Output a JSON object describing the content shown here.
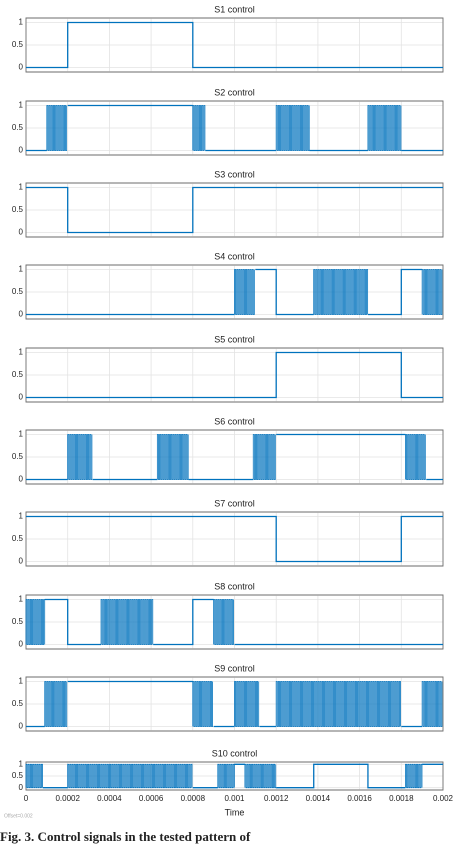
{
  "chart_data": [
    {
      "type": "step",
      "title": "S1 control",
      "color": "#0072bd",
      "ylim": [
        -0.1,
        1.1
      ],
      "yticks": [
        0,
        0.5,
        1
      ],
      "x": [
        0,
        0.0002,
        0.0008,
        0.002
      ],
      "values": [
        0,
        1,
        0,
        0
      ],
      "pwm": []
    },
    {
      "type": "step",
      "title": "S2 control",
      "color": "#0072bd",
      "ylim": [
        -0.1,
        1.1
      ],
      "yticks": [
        0,
        0.5,
        1
      ],
      "x": [
        0,
        0.0001,
        0.0002,
        0.0008,
        0.00086,
        0.0012,
        0.00136,
        0.00164,
        0.0018,
        0.002
      ],
      "values": [
        0,
        null,
        1,
        null,
        0,
        null,
        0,
        null,
        0,
        0
      ],
      "pwm": [
        [
          0.0001,
          0.0002
        ],
        [
          0.0008,
          0.00086
        ],
        [
          0.0012,
          0.00136
        ],
        [
          0.00164,
          0.0018
        ]
      ]
    },
    {
      "type": "step",
      "title": "S3 control",
      "color": "#0072bd",
      "ylim": [
        -0.1,
        1.1
      ],
      "yticks": [
        0,
        0.5,
        1
      ],
      "x": [
        0,
        0.0002,
        0.0008,
        0.002
      ],
      "values": [
        1,
        0,
        1,
        1
      ],
      "pwm": []
    },
    {
      "type": "step",
      "title": "S4 control",
      "color": "#0072bd",
      "ylim": [
        -0.1,
        1.1
      ],
      "yticks": [
        0,
        0.5,
        1
      ],
      "x": [
        0,
        0.001,
        0.0011,
        0.0012,
        0.00138,
        0.00164,
        0.0018,
        0.0019,
        0.002
      ],
      "values": [
        0,
        null,
        1,
        0,
        null,
        0,
        1,
        null,
        null
      ],
      "pwm": [
        [
          0.001,
          0.0011
        ],
        [
          0.00138,
          0.00164
        ],
        [
          0.0019,
          0.002
        ]
      ]
    },
    {
      "type": "step",
      "title": "S5 control",
      "color": "#0072bd",
      "ylim": [
        -0.1,
        1.1
      ],
      "yticks": [
        0,
        0.5,
        1
      ],
      "x": [
        0,
        0.0012,
        0.0018,
        0.002
      ],
      "values": [
        0,
        1,
        0,
        0
      ],
      "pwm": []
    },
    {
      "type": "step",
      "title": "S6 control",
      "color": "#0072bd",
      "ylim": [
        -0.1,
        1.1
      ],
      "yticks": [
        0,
        0.5,
        1
      ],
      "x": [
        0,
        0.0002,
        0.00032,
        0.00063,
        0.00078,
        0.00109,
        0.0012,
        0.00182,
        0.00192,
        0.002
      ],
      "values": [
        0,
        null,
        0,
        null,
        0,
        null,
        1,
        null,
        0,
        0
      ],
      "pwm": [
        [
          0.0002,
          0.00032
        ],
        [
          0.00063,
          0.00078
        ],
        [
          0.00109,
          0.0012
        ],
        [
          0.00182,
          0.00192
        ]
      ]
    },
    {
      "type": "step",
      "title": "S7 control",
      "color": "#0072bd",
      "ylim": [
        -0.1,
        1.1
      ],
      "yticks": [
        0,
        0.5,
        1
      ],
      "x": [
        0,
        0.0012,
        0.0018,
        0.002
      ],
      "values": [
        1,
        0,
        1,
        1
      ],
      "pwm": []
    },
    {
      "type": "step",
      "title": "S8 control",
      "color": "#0072bd",
      "ylim": [
        -0.1,
        1.1
      ],
      "yticks": [
        0,
        0.5,
        1
      ],
      "x": [
        0,
        9e-05,
        0.0002,
        0.00036,
        0.00061,
        0.0008,
        0.0009,
        0.001,
        0.002
      ],
      "values": [
        null,
        1,
        0,
        null,
        0,
        1,
        null,
        0,
        0
      ],
      "pwm": [
        [
          0,
          9e-05
        ],
        [
          0.00036,
          0.00061
        ],
        [
          0.0009,
          0.001
        ]
      ]
    },
    {
      "type": "step",
      "title": "S9 control",
      "color": "#0072bd",
      "ylim": [
        -0.1,
        1.1
      ],
      "yticks": [
        0,
        0.5,
        1
      ],
      "x": [
        0,
        9e-05,
        0.0002,
        0.0008,
        0.0009,
        0.001,
        0.00112,
        0.0012,
        0.0018,
        0.0019,
        0.002
      ],
      "values": [
        0,
        null,
        1,
        null,
        0,
        null,
        0,
        null,
        0,
        null,
        null
      ],
      "pwm": [
        [
          9e-05,
          0.0002
        ],
        [
          0.0008,
          0.0009
        ],
        [
          0.001,
          0.00112
        ],
        [
          0.0012,
          0.0018
        ],
        [
          0.0019,
          0.002
        ]
      ]
    },
    {
      "type": "step",
      "title": "S10 control",
      "color": "#0072bd",
      "ylim": [
        -0.1,
        1.1
      ],
      "yticks": [
        0,
        0.5,
        1
      ],
      "xlim": [
        0,
        0.002
      ],
      "xticks": [
        0,
        0.0002,
        0.0004,
        0.0006,
        0.0008,
        0.001,
        0.0012,
        0.0014,
        0.0016,
        0.0018,
        0.002
      ],
      "xlabel": "Time",
      "x": [
        0,
        8e-05,
        0.0002,
        0.0008,
        0.00092,
        0.001,
        0.00105,
        0.0012,
        0.00138,
        0.00164,
        0.00182,
        0.0019,
        0.002
      ],
      "values": [
        null,
        0,
        null,
        0,
        null,
        1,
        null,
        0,
        1,
        0,
        null,
        1,
        1
      ],
      "pwm": [
        [
          0,
          8e-05
        ],
        [
          0.0002,
          0.0008
        ],
        [
          0.00092,
          0.001
        ],
        [
          0.00105,
          0.0012
        ],
        [
          0.00182,
          0.0019
        ]
      ]
    }
  ],
  "footnote": "Offset=0.002",
  "caption": "Fig. 3.  Control signals in the tested pattern of"
}
